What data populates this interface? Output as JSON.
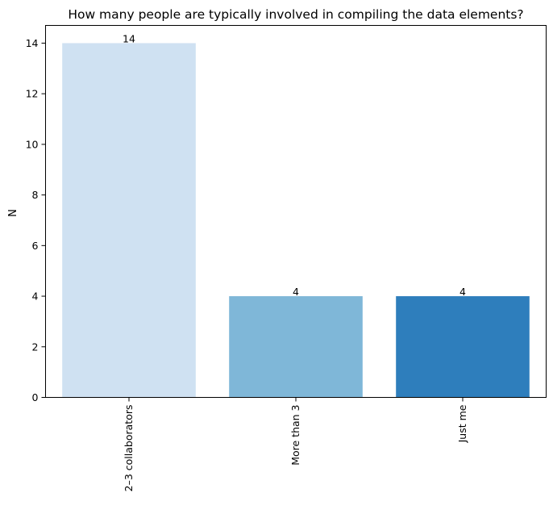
{
  "chart_data": {
    "type": "bar",
    "title": "How many people are typically involved in compiling the data elements?",
    "xlabel": "",
    "ylabel": "N",
    "categories": [
      "2–3 collaborators",
      "More than 3",
      "Just me"
    ],
    "values": [
      14,
      4,
      4
    ],
    "data_labels": [
      "14",
      "4",
      "4"
    ],
    "colors": [
      "#cfe1f2",
      "#7fb7d8",
      "#2e7ebc"
    ],
    "ylim": [
      0,
      14.7
    ],
    "yticks": [
      0,
      2,
      4,
      6,
      8,
      10,
      12,
      14
    ],
    "grid": false,
    "legend": "none"
  }
}
